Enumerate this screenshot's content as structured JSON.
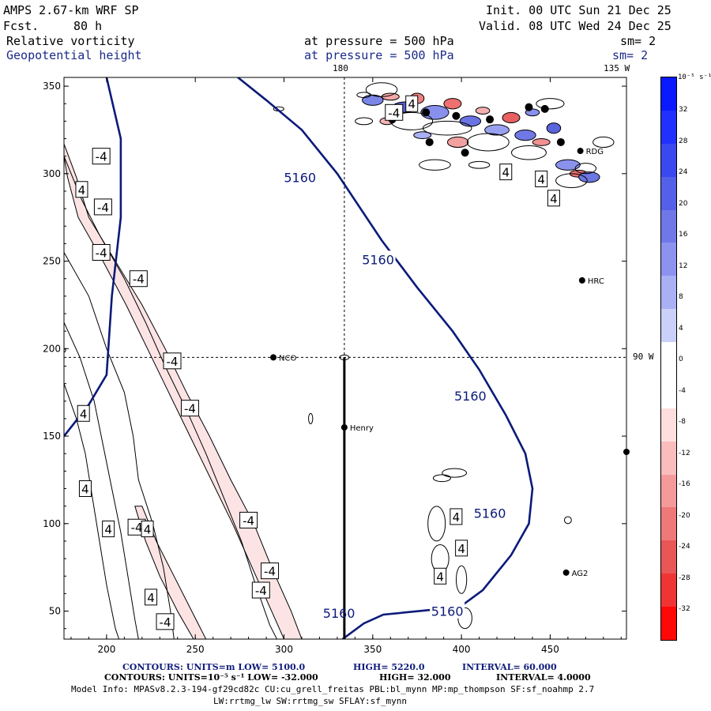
{
  "header": {
    "model": "AMPS 2.67-km WRF SP",
    "fcst_label": "Fcst.",
    "fcst_value": "80 h",
    "init": "Init. 00 UTC Sun 21 Dec 25",
    "valid": "Valid. 08 UTC Wed 24 Dec 25",
    "field1_name": "Relative vorticity",
    "field1_pressure": "at pressure =  500 hPa",
    "field1_sm": "sm= 2",
    "field2_name": "Geopotential height",
    "field2_pressure": "at pressure =  500 hPa",
    "field2_sm": "sm= 2",
    "lon_180": "180",
    "lon_135w": "135 W",
    "lon_90w": "90 W"
  },
  "colorbar": {
    "unit_label": "10⁻⁵ s⁻¹",
    "ticks": [
      "32",
      "28",
      "24",
      "20",
      "16",
      "12",
      "8",
      "4",
      "0",
      "-4",
      "-8",
      "-12",
      "-16",
      "-20",
      "-24",
      "-28",
      "-32"
    ],
    "colors": [
      "#0a1aff",
      "#2030ff",
      "#3a48f0",
      "#5560e8",
      "#7078e8",
      "#8c92ee",
      "#aab0f4",
      "#cbd0fa",
      "#ffffff",
      "#ffffff",
      "#ffdede",
      "#fbbcbc",
      "#f59a9a",
      "#ef7878",
      "#e85656",
      "#f03434",
      "#ff0808"
    ]
  },
  "stations": [
    {
      "name": "RDG",
      "x": 467,
      "y": 313
    },
    {
      "name": "HRC",
      "x": 468,
      "y": 239
    },
    {
      "name": "NCO",
      "x": 294,
      "y": 195
    },
    {
      "name": "Henry",
      "x": 334,
      "y": 155
    },
    {
      "name": "AG2",
      "x": 459,
      "y": 72
    },
    {
      "name": "",
      "x": 493,
      "y": 141
    }
  ],
  "footer": {
    "line1_contours": "CONTOURS:  UNITS=m  LOW=  5100.0",
    "line1_high": "HIGH=  5220.0",
    "line1_interval": "INTERVAL=   60.000",
    "line2_contours": "CONTOURS:  UNITS=10⁻⁵ s⁻¹  LOW= -32.000",
    "line2_high": "HIGH=  32.000",
    "line2_interval": "INTERVAL=   4.0000",
    "line3": "Model Info: MPASv8.2.3-194-gf29cd82c CU:cu_grell_freitas PBL:bl_mynn MP:mp_thompson SF:sf_noahmp 2.7",
    "line4": "LW:rrtmg_lw SW:rrtmg_sw SFLAY:sf_mynn"
  },
  "chart_data": {
    "type": "contour-map",
    "title": "Relative vorticity / Geopotential height at 500 hPa",
    "x_ticks": [
      "200",
      "250",
      "300",
      "350",
      "400",
      "450"
    ],
    "y_ticks": [
      "350",
      "300",
      "250",
      "200",
      "150",
      "100",
      "50"
    ],
    "xlim": [
      176,
      493
    ],
    "ylim": [
      34,
      355
    ],
    "height_contour_value": 5160,
    "height_contour_labels": [
      "5160",
      "5160",
      "5160",
      "5160",
      "5160",
      "5160"
    ],
    "height_label_positions_data": [
      [
        309,
        298
      ],
      [
        353,
        251
      ],
      [
        405,
        173
      ],
      [
        416,
        106
      ],
      [
        331,
        49
      ],
      [
        392,
        50
      ]
    ],
    "height_contour_line": [
      [
        333,
        34
      ],
      [
        345,
        43
      ],
      [
        356,
        48
      ],
      [
        386,
        51
      ],
      [
        400,
        53
      ],
      [
        412,
        62
      ],
      [
        428,
        82
      ],
      [
        438,
        100
      ],
      [
        440,
        120
      ],
      [
        436,
        140
      ],
      [
        425,
        162
      ],
      [
        410,
        188
      ],
      [
        395,
        210
      ],
      [
        375,
        235
      ],
      [
        355,
        262
      ],
      [
        330,
        300
      ],
      [
        310,
        325
      ],
      [
        290,
        342
      ],
      [
        274,
        355
      ]
    ],
    "height_contour_line_west": [
      [
        176,
        150
      ],
      [
        190,
        168
      ],
      [
        200,
        185
      ],
      [
        203,
        230
      ],
      [
        208,
        275
      ],
      [
        208,
        320
      ],
      [
        200,
        355
      ]
    ],
    "vorticity_labels": [
      {
        "v": "-4",
        "x": 197,
        "y": 310
      },
      {
        "v": "-4",
        "x": 198,
        "y": 281
      },
      {
        "v": "-4",
        "x": 197,
        "y": 255
      },
      {
        "v": "-4",
        "x": 218,
        "y": 240
      },
      {
        "v": "-4",
        "x": 237,
        "y": 193
      },
      {
        "v": "-4",
        "x": 247,
        "y": 166
      },
      {
        "v": "-4",
        "x": 280,
        "y": 102
      },
      {
        "v": "-4",
        "x": 292,
        "y": 73
      },
      {
        "v": "-4",
        "x": 287,
        "y": 62
      },
      {
        "v": "-4",
        "x": 233,
        "y": 44
      },
      {
        "v": "-4",
        "x": 217,
        "y": 98
      },
      {
        "v": "-4",
        "x": 362,
        "y": 335
      },
      {
        "v": "4",
        "x": 186,
        "y": 291
      },
      {
        "v": "4",
        "x": 187,
        "y": 163
      },
      {
        "v": "4",
        "x": 188,
        "y": 120
      },
      {
        "v": "4",
        "x": 201,
        "y": 97
      },
      {
        "v": "4",
        "x": 223,
        "y": 97
      },
      {
        "v": "4",
        "x": 225,
        "y": 58
      },
      {
        "v": "4",
        "x": 372,
        "y": 340
      },
      {
        "v": "4",
        "x": 425,
        "y": 301
      },
      {
        "v": "4",
        "x": 445,
        "y": 297
      },
      {
        "v": "4",
        "x": 452,
        "y": 286
      },
      {
        "v": "4",
        "x": 397,
        "y": 104
      },
      {
        "v": "4",
        "x": 400,
        "y": 86
      },
      {
        "v": "4",
        "x": 388,
        "y": 70
      }
    ],
    "negative_band": [
      [
        176,
        317
      ],
      [
        183,
        298
      ],
      [
        190,
        275
      ],
      [
        205,
        250
      ],
      [
        220,
        225
      ],
      [
        233,
        200
      ],
      [
        245,
        175
      ],
      [
        258,
        150
      ],
      [
        270,
        125
      ],
      [
        283,
        100
      ],
      [
        293,
        75
      ],
      [
        304,
        50
      ],
      [
        310,
        34
      ],
      [
        300,
        34
      ],
      [
        293,
        50
      ],
      [
        282,
        75
      ],
      [
        271,
        100
      ],
      [
        259,
        125
      ],
      [
        247,
        150
      ],
      [
        235,
        175
      ],
      [
        223,
        200
      ],
      [
        211,
        225
      ],
      [
        198,
        250
      ],
      [
        184,
        275
      ],
      [
        178,
        298
      ],
      [
        176,
        310
      ]
    ],
    "negative_band_2": [
      [
        220,
        110
      ],
      [
        228,
        90
      ],
      [
        238,
        70
      ],
      [
        248,
        50
      ],
      [
        256,
        34
      ],
      [
        249,
        34
      ],
      [
        240,
        50
      ],
      [
        230,
        70
      ],
      [
        222,
        90
      ],
      [
        216,
        110
      ]
    ]
  }
}
